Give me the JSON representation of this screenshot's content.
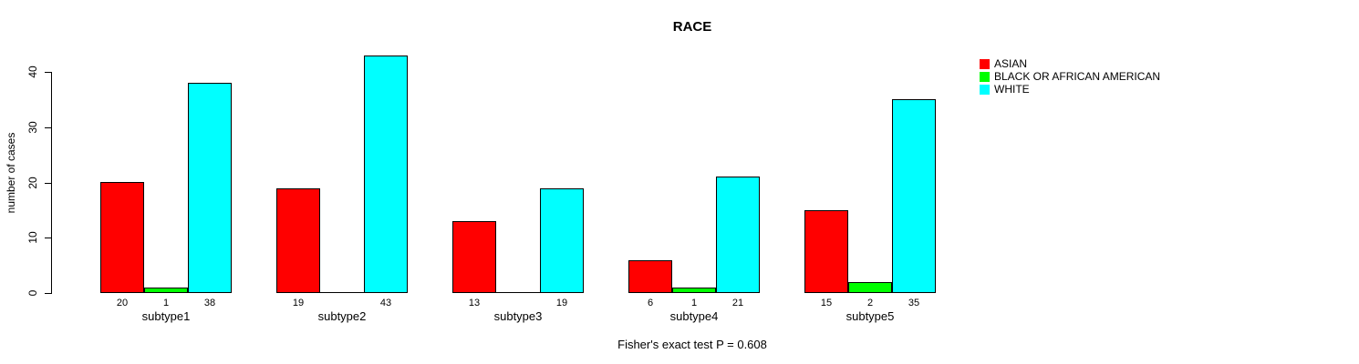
{
  "chart_data": {
    "type": "bar",
    "title": "RACE",
    "ylabel": "number of cases",
    "xlabel": "",
    "note": "Fisher's exact test P = 0.608",
    "categories": [
      "subtype1",
      "subtype2",
      "subtype3",
      "subtype4",
      "subtype5"
    ],
    "series": [
      {
        "name": "ASIAN",
        "color": "#FF0000",
        "values": [
          20,
          19,
          13,
          6,
          15
        ]
      },
      {
        "name": "BLACK OR AFRICAN AMERICAN",
        "color": "#00FF00",
        "values": [
          1,
          0,
          0,
          1,
          2
        ]
      },
      {
        "name": "WHITE",
        "color": "#00FFFF",
        "values": [
          38,
          43,
          19,
          21,
          35
        ]
      }
    ],
    "yticks": [
      0,
      10,
      20,
      30,
      40
    ],
    "ylim": [
      0,
      43
    ],
    "bar_value_labels": {
      "subtype1": [
        20,
        1,
        38
      ],
      "subtype2": [
        19,
        null,
        43
      ],
      "subtype3": [
        13,
        null,
        19
      ],
      "subtype4": [
        6,
        1,
        21
      ],
      "subtype5": [
        15,
        2,
        35
      ]
    },
    "zero_values_hidden": true,
    "grid": false,
    "legend_position": "right",
    "axis_color": "#000000",
    "background": "#FFFFFF"
  }
}
